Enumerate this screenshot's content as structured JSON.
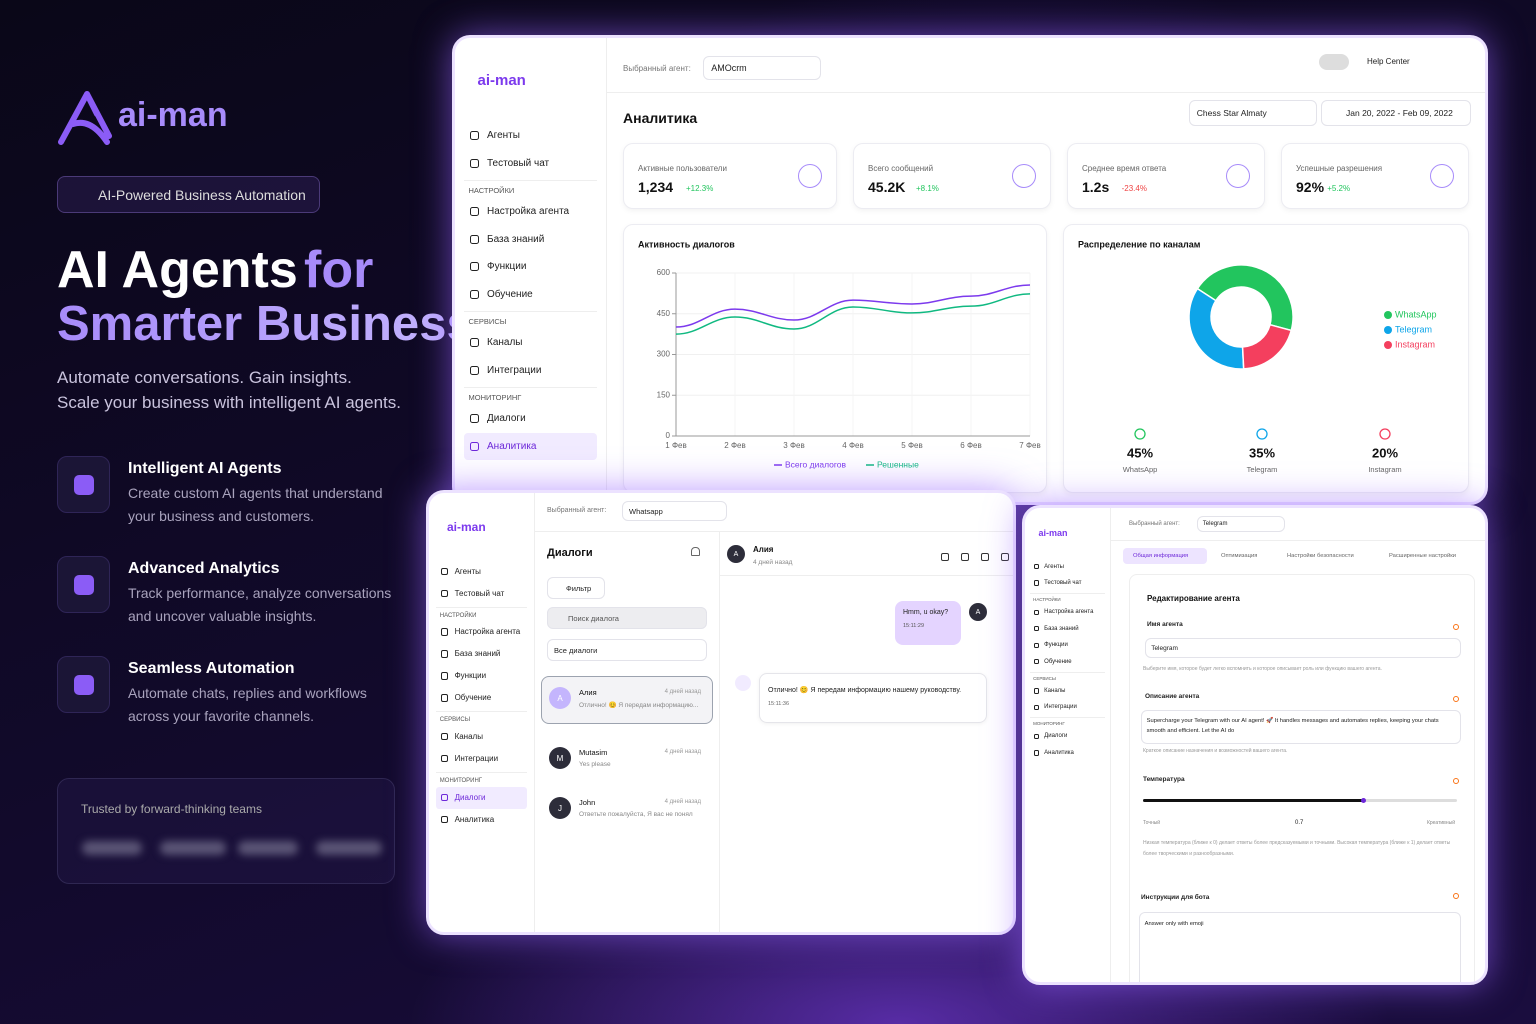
{
  "hero": {
    "logo": "ai-man",
    "badge": "AI-Powered Business Automation",
    "title_1": "AI Agents",
    "title_2": "for",
    "title_3": "Smarter Business",
    "subtitle_1": "Automate conversations. Gain insights.",
    "subtitle_2": "Scale your business with intelligent AI agents.",
    "features": [
      {
        "title": "Intelligent AI Agents",
        "lines": [
          "Create custom AI agents that understand",
          "your business and customers."
        ]
      },
      {
        "title": "Advanced Analytics",
        "lines": [
          "Track performance, analyze conversations",
          "and uncover valuable insights."
        ]
      },
      {
        "title": "Seamless Automation",
        "lines": [
          "Automate chats, replies and workflows",
          "across your favorite channels."
        ]
      }
    ],
    "trusted": "Trusted by forward-thinking teams"
  },
  "sidebar": {
    "logo": "ai-man",
    "groups": [
      {
        "items": [
          "Агенты",
          "Тестовый чат"
        ]
      },
      {
        "label": "НАСТРОЙКИ",
        "items": [
          "Настройка агента",
          "База знаний",
          "Функции",
          "Обучение"
        ]
      },
      {
        "label": "СЕРВИСЫ",
        "items": [
          "Каналы",
          "Интеграции"
        ]
      },
      {
        "label": "МОНИТОРИНГ",
        "items": [
          "Диалоги",
          "Аналитика"
        ]
      }
    ]
  },
  "analytics_panel": {
    "agent_label": "Выбранный агент:",
    "agent": "AMOcrm",
    "help": "Help Center",
    "title": "Аналитика",
    "filter": "Chess Star Almaty",
    "date_range": "Jan 20, 2022 - Feb 09, 2022",
    "stats": [
      {
        "label": "Активные пользователи",
        "value": "1,234",
        "change": "+12.3%"
      },
      {
        "label": "Всего сообщений",
        "value": "45.2K",
        "change": "+8.1%"
      },
      {
        "label": "Среднее время ответа",
        "value": "1.2s",
        "change": "-23.4%"
      },
      {
        "label": "Успешные разрешения",
        "value": "92%",
        "change": "+5.2%"
      }
    ]
  },
  "chart_data": [
    {
      "type": "line",
      "title": "Активность диалогов",
      "categories": [
        "1 Фев",
        "2 Фев",
        "3 Фев",
        "4 Фев",
        "5 Фев",
        "6 Фев",
        "7 Фев"
      ],
      "series": [
        {
          "name": "Всего диалогов",
          "color": "#7c3aed",
          "values": [
            401,
            467,
            427,
            500,
            486,
            515,
            556
          ]
        },
        {
          "name": "Решенные",
          "color": "#10b981",
          "values": [
            375,
            438,
            394,
            475,
            453,
            478,
            523
          ]
        }
      ],
      "ylim": [
        0,
        600
      ],
      "yticks": [
        0,
        150,
        300,
        450,
        600
      ],
      "grid": true
    },
    {
      "type": "pie",
      "title": "Распределение по каналам",
      "categories": [
        "WhatsApp",
        "Telegram",
        "Instagram"
      ],
      "values": [
        45,
        35,
        20
      ],
      "value_labels": [
        "45%",
        "35%",
        "20%"
      ],
      "colors": [
        "#22c55e",
        "#0ea5e9",
        "#f43f5e"
      ]
    }
  ],
  "dialogs_panel": {
    "agent_label": "Выбранный агент:",
    "agent": "Whatsapp",
    "title": "Диалоги",
    "filter": "Фильтр",
    "search": "Поиск диалога",
    "select": "Все диалоги",
    "conversations": [
      {
        "avatar": "A",
        "name": "Алия",
        "time": "4 дней назад",
        "preview": "Отлично! 😊 Я передам информацию..."
      },
      {
        "avatar": "M",
        "name": "Mutasim",
        "time": "4 дней назад",
        "preview": "Yes please"
      },
      {
        "avatar": "J",
        "name": "John",
        "time": "4 дней назад",
        "preview": "Ответьте пожалуйста, Я вас не понял"
      }
    ],
    "chat": {
      "avatar": "A",
      "name": "Алия",
      "time": "4 дней назад",
      "messages": [
        {
          "text": "Hmm, u okay?",
          "time": "15:11:29",
          "avatar": "A"
        },
        {
          "text": "Отлично! 😊 Я передам информацию нашему руководству.",
          "time": "15:11:36"
        }
      ]
    }
  },
  "settings_panel": {
    "agent_label": "Выбранный агент:",
    "agent": "Telegram",
    "tabs": [
      "Общая информация",
      "Оптимизация",
      "Настройки безопасности",
      "Расширенные настройки"
    ],
    "section": "Редактирование агента",
    "name_label": "Имя агента",
    "name_value": "Telegram",
    "name_hint": "Выберите имя, которое будет легко вспомнить и которое описывает роль или функцию вашего агента.",
    "desc_label": "Описание агента",
    "desc_value": "Supercharge your Telegram with our AI agent! 🚀 It handles messages and automates replies, keeping your chats smooth and efficient. Let the AI do",
    "desc_hint": "Краткое описание назначения и возможностей вашего агента.",
    "temp_label": "Температура",
    "temperature": 0.7,
    "temp_min": "Точный",
    "temp_max": "Креативный",
    "temp_hint": "Низкая температура (ближе к 0) делает ответы более предсказуемыми и точными. Высокая температура (ближе к 1) делает ответы более творческими и разнообразными.",
    "instr_label": "Инструкции для бота",
    "instr_value": "Answer only with emoji"
  }
}
